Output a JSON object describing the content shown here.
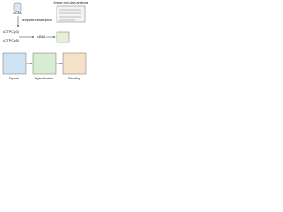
{
  "labels": {
    "top_sample": "cDNA",
    "transcription": "Template transcription",
    "analysis": "Image and data analysis",
    "dye_a": "aCTP(Cy3)",
    "dye_b": "aCTP(Cy5)",
    "target": "cDNA",
    "deposit": "Deposit",
    "hybridization": "Hybridization",
    "reading": "Reading"
  }
}
